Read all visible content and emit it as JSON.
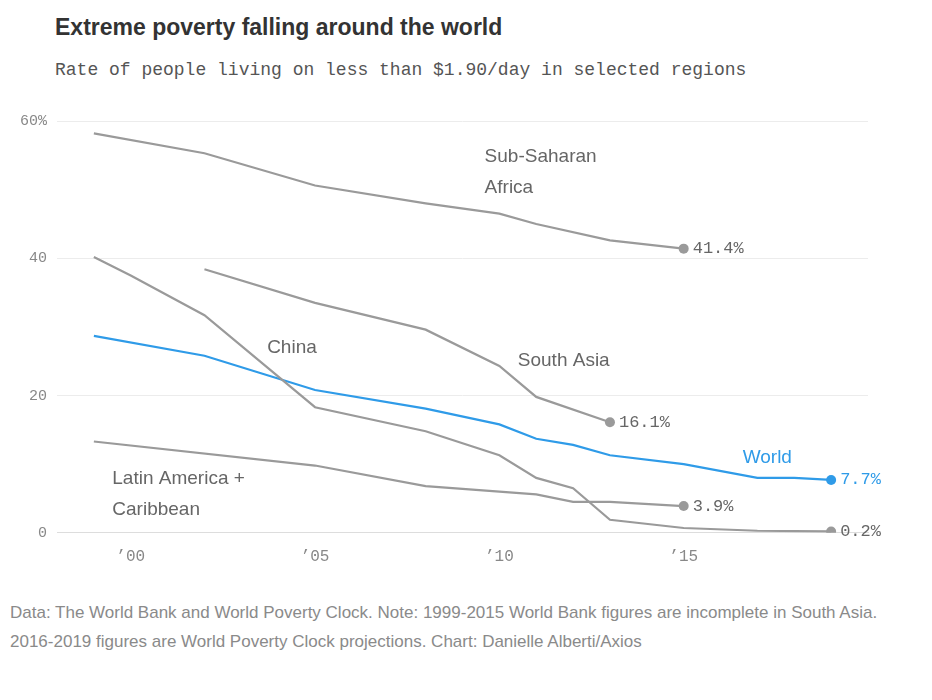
{
  "chart_data": {
    "type": "line",
    "title": "Extreme poverty falling around the world",
    "subtitle": "Rate of people living on less than $1.90/day in selected regions",
    "source": "Data: The World Bank and World Poverty Clock. Note: 1999-2015 World Bank figures are incomplete in South Asia. 2016-2019 figures are World Poverty Clock projections. Chart: Danielle Alberti/Axios",
    "xlim": [
      1998,
      2020
    ],
    "xticks": [
      {
        "value": 2000,
        "label": "’00"
      },
      {
        "value": 2005,
        "label": "’05"
      },
      {
        "value": 2010,
        "label": "’10"
      },
      {
        "value": 2015,
        "label": "’15"
      }
    ],
    "ylim": [
      0,
      60
    ],
    "yticks": [
      0,
      20,
      40,
      {
        "value": 60,
        "label": "60%"
      }
    ],
    "grid": true,
    "series": [
      {
        "name": "Sub-Saharan Africa",
        "color": "#9a9a9a",
        "x": [
          1999,
          2002,
          2005,
          2008,
          2010,
          2011,
          2013,
          2015
        ],
        "values": [
          58.2,
          55.3,
          50.6,
          48.0,
          46.5,
          45.0,
          42.6,
          41.4
        ],
        "value_labels": [
          null,
          null,
          null,
          null,
          null,
          null,
          null,
          "41.4%"
        ]
      },
      {
        "name": "China",
        "color": "#9a9a9a",
        "x": [
          1999,
          2000,
          2002,
          2005,
          2008,
          2010,
          2011,
          2012,
          2013,
          2015,
          2017,
          2019
        ],
        "values": [
          40.2,
          37.5,
          31.7,
          18.3,
          14.8,
          11.3,
          8.0,
          6.5,
          1.9,
          0.7,
          0.3,
          0.2
        ],
        "value_labels": [
          null,
          null,
          null,
          null,
          null,
          null,
          null,
          null,
          null,
          null,
          null,
          "0.2%"
        ]
      },
      {
        "name": "South Asia",
        "color": "#9a9a9a",
        "x": [
          2002,
          2005,
          2008,
          2010,
          2011,
          2013
        ],
        "values": [
          38.4,
          33.5,
          29.6,
          24.3,
          19.8,
          16.1
        ],
        "value_labels": [
          null,
          null,
          null,
          null,
          null,
          "16.1%"
        ]
      },
      {
        "name": "Latin America + Caribbean",
        "color": "#9a9a9a",
        "x": [
          1999,
          2005,
          2008,
          2011,
          2012,
          2013,
          2015
        ],
        "values": [
          13.3,
          9.8,
          6.8,
          5.6,
          4.5,
          4.5,
          3.9
        ],
        "value_labels": [
          null,
          null,
          null,
          null,
          null,
          null,
          "3.9%"
        ]
      },
      {
        "name": "World",
        "color": "#2f9be8",
        "x": [
          1999,
          2002,
          2005,
          2008,
          2010,
          2011,
          2012,
          2013,
          2015,
          2017,
          2018,
          2019
        ],
        "values": [
          28.7,
          25.8,
          20.8,
          18.1,
          15.8,
          13.7,
          12.8,
          11.3,
          10.0,
          8.0,
          8.0,
          7.7
        ],
        "value_labels": [
          null,
          null,
          null,
          null,
          null,
          null,
          null,
          null,
          null,
          null,
          null,
          "7.7%"
        ]
      }
    ]
  }
}
